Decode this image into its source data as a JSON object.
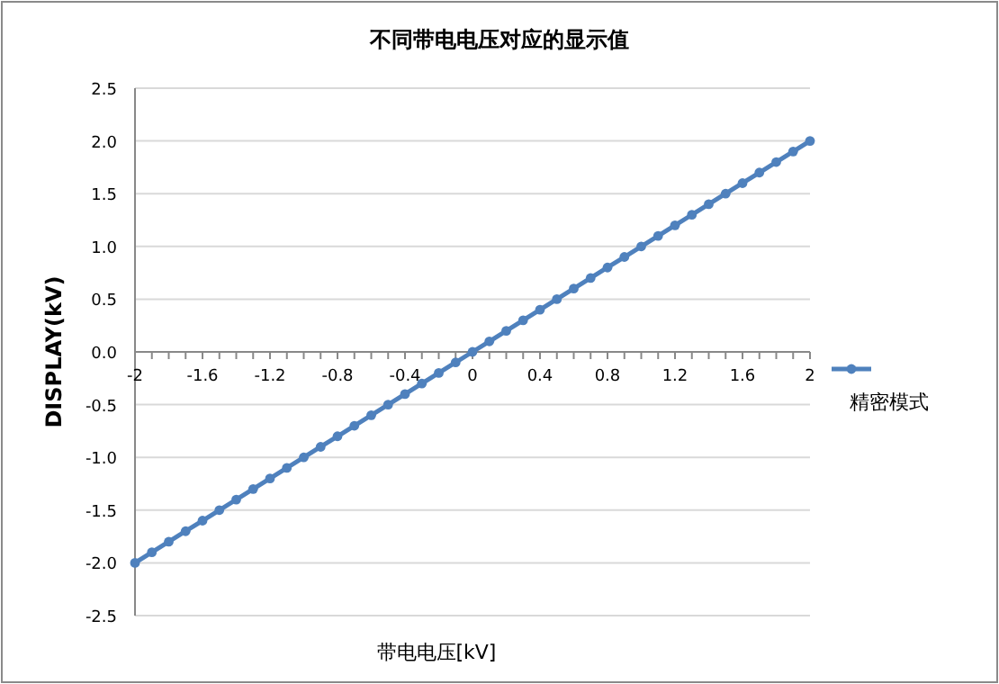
{
  "chart_data": {
    "type": "line",
    "title": "不同带电电压对应的显示值",
    "xlabel": "带电电压[kV]",
    "ylabel": "DISPLAY(kV)",
    "x": [
      -2,
      -1.9,
      -1.8,
      -1.7,
      -1.6,
      -1.5,
      -1.4,
      -1.3,
      -1.2,
      -1.1,
      -1,
      -0.9,
      -0.8,
      -0.7,
      -0.6,
      -0.5,
      -0.4,
      -0.3,
      -0.2,
      -0.1,
      0,
      0.1,
      0.2,
      0.3,
      0.4,
      0.5,
      0.6,
      0.7,
      0.8,
      0.9,
      1,
      1.1,
      1.2,
      1.3,
      1.4,
      1.5,
      1.6,
      1.7,
      1.8,
      1.9,
      2
    ],
    "series": [
      {
        "name": "精密模式",
        "color": "#4f81bd",
        "values": [
          -2,
          -1.9,
          -1.8,
          -1.7,
          -1.6,
          -1.5,
          -1.4,
          -1.3,
          -1.2,
          -1.1,
          -1,
          -0.9,
          -0.8,
          -0.7,
          -0.6,
          -0.5,
          -0.4,
          -0.3,
          -0.2,
          -0.1,
          0,
          0.1,
          0.2,
          0.3,
          0.4,
          0.5,
          0.6,
          0.7,
          0.8,
          0.9,
          1,
          1.1,
          1.2,
          1.3,
          1.4,
          1.5,
          1.6,
          1.7,
          1.8,
          1.9,
          2
        ]
      }
    ],
    "xlim": [
      -2,
      2
    ],
    "xticks": [
      -2,
      -1.6,
      -1.2,
      -0.8,
      -0.4,
      0,
      0.4,
      0.8,
      1.2,
      1.6,
      2
    ],
    "ylim": [
      -2.5,
      2.5
    ],
    "yticks": [
      {
        "value": -2.5,
        "label": "-2.5"
      },
      {
        "value": -2,
        "label": "-2.0"
      },
      {
        "value": -1.5,
        "label": "-1.5"
      },
      {
        "value": -1,
        "label": "-1.0"
      },
      {
        "value": -0.5,
        "label": "-0.5"
      },
      {
        "value": 0,
        "label": "0.0"
      },
      {
        "value": 0.5,
        "label": "0.5"
      },
      {
        "value": 1,
        "label": "1.0"
      },
      {
        "value": 1.5,
        "label": "1.5"
      },
      {
        "value": 2,
        "label": "2.0"
      },
      {
        "value": 2.5,
        "label": "2.5"
      }
    ],
    "grid": "y",
    "legend": "right",
    "marker": "circle",
    "line_style": "solid"
  }
}
